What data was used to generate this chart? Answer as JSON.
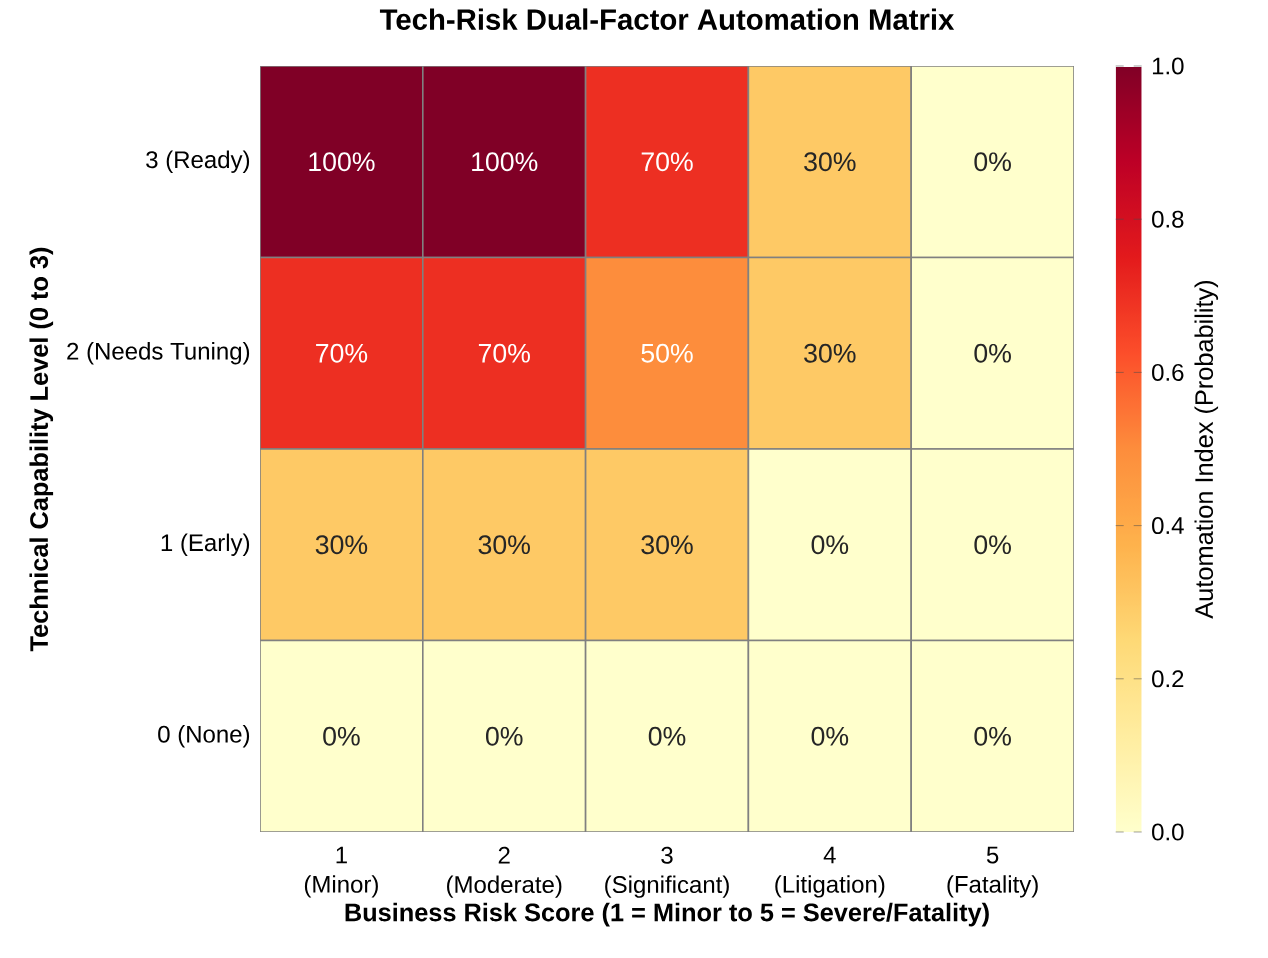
{
  "chart_data": {
    "type": "heatmap",
    "title": "Tech-Risk Dual-Factor Automation Matrix",
    "xlabel": "Business Risk Score (1 = Minor to 5 = Severe/Fatality)",
    "ylabel": "Technical Capability Level (0 to 3)",
    "clabel": "Automation Index (Probability)",
    "categories": [
      "1 (Minor)",
      "2 (Moderate)",
      "3 (Significant)",
      "4 (Litigation)",
      "5 (Fatality)"
    ],
    "y_categories": [
      "3 (Ready)",
      "2 (Needs Tuning)",
      "1 (Early)",
      "0 (None)"
    ],
    "cells": [
      [
        1.0,
        1.0,
        0.7,
        0.3,
        0.0
      ],
      [
        0.7,
        0.7,
        0.5,
        0.3,
        0.0
      ],
      [
        0.3,
        0.3,
        0.3,
        0.0,
        0.0
      ],
      [
        0.0,
        0.0,
        0.0,
        0.0,
        0.0
      ]
    ],
    "cell_labels": [
      [
        "100%",
        "100%",
        "70%",
        "30%",
        "0%"
      ],
      [
        "70%",
        "70%",
        "50%",
        "30%",
        "0%"
      ],
      [
        "30%",
        "30%",
        "30%",
        "0%",
        "0%"
      ],
      [
        "0%",
        "0%",
        "0%",
        "0%",
        "0%"
      ]
    ],
    "clim": [
      0,
      1
    ],
    "cticks": [
      {
        "value": 0,
        "label": "0.0"
      },
      {
        "value": 0.2,
        "label": "0.2"
      },
      {
        "value": 0.4,
        "label": "0.4"
      },
      {
        "value": 0.6,
        "label": "0.6"
      },
      {
        "value": 0.8,
        "label": "0.8"
      },
      {
        "value": 1,
        "label": "1.0"
      }
    ]
  }
}
